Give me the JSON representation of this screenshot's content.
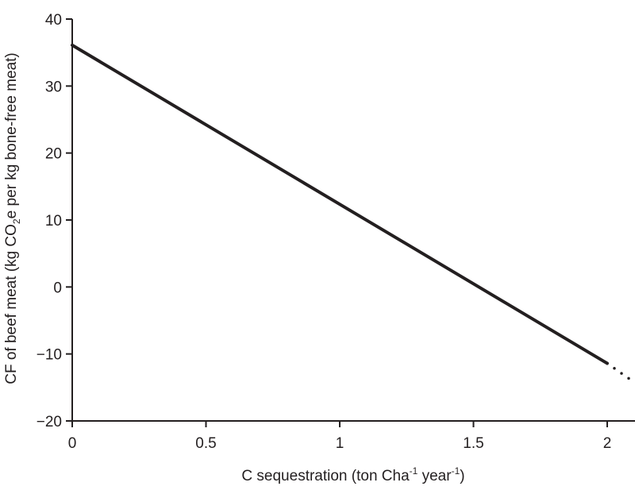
{
  "chart_data": {
    "type": "line",
    "xlabel": "C sequestration (ton Cha-1 year-1)",
    "xlabel_parts": {
      "pre": "C sequestration (ton Cha",
      "sup1": "-1",
      "mid": " year",
      "sup2": "-1",
      "post": ")"
    },
    "ylabel": "CF of beef meat (kg CO2e per kg bone-free meat)",
    "ylabel_parts": {
      "pre": "CF of beef meat (kg CO",
      "sub": "2",
      "post": "e per kg bone-free meat)"
    },
    "xlim": [
      0,
      2.1
    ],
    "ylim": [
      -20,
      40
    ],
    "xticks": [
      0,
      0.5,
      1,
      1.5,
      2
    ],
    "xtick_labels": [
      "0",
      "0.5",
      "1",
      "1.5",
      "2"
    ],
    "yticks": [
      -20,
      -10,
      0,
      10,
      20,
      30,
      40
    ],
    "ytick_labels": [
      "−20",
      "−10",
      "0",
      "10",
      "20",
      "30",
      "40"
    ],
    "series": [
      {
        "style": "solid",
        "x": [
          0,
          2.0
        ],
        "y": [
          36.1,
          -11.4
        ]
      },
      {
        "style": "dotted",
        "x": [
          2.0,
          2.1
        ],
        "y": [
          -11.4,
          -14.2
        ]
      }
    ],
    "grid": false,
    "line_color": "#231f20"
  }
}
